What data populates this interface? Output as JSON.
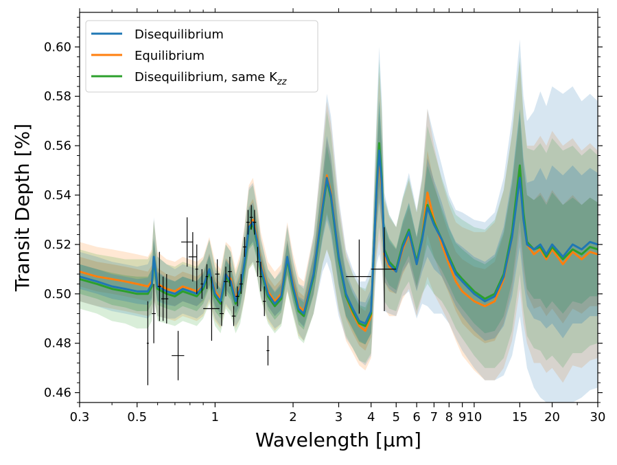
{
  "chart_data": {
    "type": "line",
    "title": "",
    "xlabel": "Wavelength [µm]",
    "ylabel": "Transit Depth [%]",
    "xscale": "log",
    "xlim": [
      0.3,
      30
    ],
    "ylim": [
      0.456,
      0.614
    ],
    "xticks": [
      0.3,
      0.5,
      1,
      2,
      3,
      4,
      5,
      6,
      7,
      8,
      9,
      10,
      15,
      20,
      30
    ],
    "xtick_labels": [
      "0.3",
      "0.5",
      "1",
      "2",
      "3",
      "4",
      "5",
      "6",
      "7",
      "8",
      "9",
      "10",
      "15",
      "20",
      "30"
    ],
    "yticks": [
      0.46,
      0.48,
      0.5,
      0.52,
      0.54,
      0.56,
      0.58,
      0.6
    ],
    "ytick_labels": [
      "0.46",
      "0.48",
      "0.50",
      "0.52",
      "0.54",
      "0.56",
      "0.58",
      "0.60"
    ],
    "legend": {
      "position": "upper-left",
      "entries": [
        "Disequilibrium",
        "Equilibrium",
        "Disequilibrium, same K"
      ],
      "subscript": "zz"
    },
    "series": [
      {
        "name": "Disequilibrium",
        "color": "#1f77b4",
        "x": [
          0.3,
          0.35,
          0.4,
          0.45,
          0.5,
          0.55,
          0.57,
          0.58,
          0.6,
          0.65,
          0.7,
          0.75,
          0.8,
          0.85,
          0.9,
          0.95,
          1.0,
          1.05,
          1.1,
          1.15,
          1.2,
          1.25,
          1.3,
          1.35,
          1.4,
          1.45,
          1.5,
          1.6,
          1.7,
          1.8,
          1.9,
          2.0,
          2.1,
          2.2,
          2.4,
          2.6,
          2.7,
          2.8,
          3.0,
          3.2,
          3.4,
          3.6,
          3.8,
          4.0,
          4.2,
          4.3,
          4.4,
          4.5,
          4.7,
          5.0,
          5.3,
          5.6,
          6.0,
          6.3,
          6.6,
          7.0,
          7.5,
          8.0,
          8.5,
          9.0,
          10.0,
          11.0,
          12.0,
          13.0,
          14.0,
          15.0,
          15.5,
          16.0,
          17.0,
          18.0,
          19.0,
          20.0,
          22.0,
          24.0,
          26.0,
          28.0,
          30.0
        ],
        "y": [
          0.507,
          0.505,
          0.503,
          0.502,
          0.501,
          0.501,
          0.504,
          0.515,
          0.503,
          0.501,
          0.5,
          0.502,
          0.501,
          0.5,
          0.503,
          0.51,
          0.5,
          0.497,
          0.508,
          0.505,
          0.497,
          0.502,
          0.513,
          0.527,
          0.529,
          0.522,
          0.511,
          0.5,
          0.496,
          0.499,
          0.515,
          0.503,
          0.494,
          0.492,
          0.508,
          0.535,
          0.547,
          0.54,
          0.515,
          0.5,
          0.494,
          0.489,
          0.488,
          0.493,
          0.542,
          0.558,
          0.545,
          0.517,
          0.512,
          0.509,
          0.519,
          0.525,
          0.512,
          0.522,
          0.535,
          0.528,
          0.522,
          0.514,
          0.508,
          0.505,
          0.5,
          0.497,
          0.499,
          0.507,
          0.523,
          0.547,
          0.53,
          0.52,
          0.518,
          0.52,
          0.516,
          0.52,
          0.515,
          0.52,
          0.518,
          0.521,
          0.52
        ],
        "band_width": [
          0.01,
          0.01,
          0.01,
          0.01,
          0.01,
          0.011,
          0.012,
          0.016,
          0.012,
          0.011,
          0.01,
          0.01,
          0.01,
          0.01,
          0.011,
          0.012,
          0.01,
          0.01,
          0.012,
          0.012,
          0.01,
          0.012,
          0.014,
          0.016,
          0.016,
          0.014,
          0.012,
          0.01,
          0.01,
          0.011,
          0.013,
          0.011,
          0.01,
          0.011,
          0.016,
          0.026,
          0.034,
          0.032,
          0.024,
          0.018,
          0.016,
          0.016,
          0.017,
          0.018,
          0.03,
          0.042,
          0.034,
          0.024,
          0.02,
          0.018,
          0.02,
          0.024,
          0.022,
          0.026,
          0.04,
          0.036,
          0.03,
          0.026,
          0.026,
          0.028,
          0.03,
          0.032,
          0.034,
          0.04,
          0.048,
          0.056,
          0.05,
          0.05,
          0.056,
          0.062,
          0.06,
          0.064,
          0.066,
          0.064,
          0.06,
          0.06,
          0.058
        ]
      },
      {
        "name": "Equilibrium",
        "color": "#ff7f0e",
        "x": [
          0.3,
          0.35,
          0.4,
          0.45,
          0.5,
          0.55,
          0.57,
          0.58,
          0.6,
          0.65,
          0.7,
          0.75,
          0.8,
          0.85,
          0.9,
          0.95,
          1.0,
          1.05,
          1.1,
          1.15,
          1.2,
          1.25,
          1.3,
          1.35,
          1.4,
          1.45,
          1.5,
          1.6,
          1.7,
          1.8,
          1.9,
          2.0,
          2.1,
          2.2,
          2.4,
          2.6,
          2.7,
          2.8,
          3.0,
          3.2,
          3.4,
          3.6,
          3.8,
          4.0,
          4.2,
          4.3,
          4.4,
          4.5,
          4.7,
          5.0,
          5.3,
          5.6,
          6.0,
          6.3,
          6.6,
          7.0,
          7.5,
          8.0,
          8.5,
          9.0,
          10.0,
          11.0,
          12.0,
          13.0,
          14.0,
          15.0,
          15.5,
          16.0,
          17.0,
          18.0,
          19.0,
          20.0,
          22.0,
          24.0,
          26.0,
          28.0,
          30.0
        ],
        "y": [
          0.509,
          0.507,
          0.506,
          0.505,
          0.504,
          0.503,
          0.505,
          0.514,
          0.504,
          0.502,
          0.501,
          0.503,
          0.502,
          0.501,
          0.503,
          0.51,
          0.501,
          0.498,
          0.508,
          0.506,
          0.498,
          0.503,
          0.513,
          0.527,
          0.53,
          0.523,
          0.512,
          0.501,
          0.497,
          0.5,
          0.515,
          0.504,
          0.495,
          0.493,
          0.508,
          0.536,
          0.548,
          0.541,
          0.515,
          0.499,
          0.492,
          0.487,
          0.485,
          0.491,
          0.541,
          0.556,
          0.543,
          0.516,
          0.511,
          0.509,
          0.518,
          0.524,
          0.512,
          0.523,
          0.541,
          0.53,
          0.52,
          0.512,
          0.505,
          0.501,
          0.497,
          0.495,
          0.497,
          0.506,
          0.523,
          0.548,
          0.53,
          0.52,
          0.516,
          0.518,
          0.514,
          0.518,
          0.512,
          0.517,
          0.514,
          0.517,
          0.516
        ],
        "band_width": [
          0.012,
          0.012,
          0.012,
          0.012,
          0.012,
          0.012,
          0.013,
          0.016,
          0.013,
          0.012,
          0.012,
          0.012,
          0.012,
          0.012,
          0.012,
          0.013,
          0.012,
          0.012,
          0.013,
          0.013,
          0.012,
          0.013,
          0.015,
          0.017,
          0.017,
          0.015,
          0.013,
          0.012,
          0.012,
          0.012,
          0.014,
          0.012,
          0.012,
          0.012,
          0.016,
          0.024,
          0.03,
          0.028,
          0.022,
          0.018,
          0.016,
          0.016,
          0.016,
          0.017,
          0.026,
          0.034,
          0.03,
          0.022,
          0.02,
          0.018,
          0.02,
          0.022,
          0.021,
          0.024,
          0.034,
          0.03,
          0.026,
          0.024,
          0.024,
          0.026,
          0.028,
          0.03,
          0.032,
          0.036,
          0.042,
          0.046,
          0.042,
          0.04,
          0.044,
          0.046,
          0.046,
          0.048,
          0.048,
          0.046,
          0.044,
          0.044,
          0.042
        ]
      },
      {
        "name": "Disequilibrium, same Kzz",
        "color": "#2ca02c",
        "x": [
          0.3,
          0.35,
          0.4,
          0.45,
          0.5,
          0.55,
          0.57,
          0.58,
          0.6,
          0.65,
          0.7,
          0.75,
          0.8,
          0.85,
          0.9,
          0.95,
          1.0,
          1.05,
          1.1,
          1.15,
          1.2,
          1.25,
          1.3,
          1.35,
          1.4,
          1.45,
          1.5,
          1.6,
          1.7,
          1.8,
          1.9,
          2.0,
          2.1,
          2.2,
          2.4,
          2.6,
          2.7,
          2.8,
          3.0,
          3.2,
          3.4,
          3.6,
          3.8,
          4.0,
          4.2,
          4.3,
          4.4,
          4.5,
          4.7,
          5.0,
          5.3,
          5.6,
          6.0,
          6.3,
          6.6,
          7.0,
          7.5,
          8.0,
          8.5,
          9.0,
          10.0,
          11.0,
          12.0,
          13.0,
          14.0,
          15.0,
          15.5,
          16.0,
          17.0,
          18.0,
          19.0,
          20.0,
          22.0,
          24.0,
          26.0,
          28.0,
          30.0
        ],
        "y": [
          0.506,
          0.504,
          0.502,
          0.501,
          0.5,
          0.5,
          0.503,
          0.514,
          0.502,
          0.5,
          0.499,
          0.501,
          0.5,
          0.499,
          0.502,
          0.509,
          0.499,
          0.496,
          0.507,
          0.504,
          0.496,
          0.501,
          0.512,
          0.526,
          0.528,
          0.521,
          0.51,
          0.499,
          0.495,
          0.498,
          0.514,
          0.502,
          0.493,
          0.491,
          0.507,
          0.534,
          0.546,
          0.539,
          0.514,
          0.499,
          0.493,
          0.488,
          0.487,
          0.492,
          0.543,
          0.561,
          0.547,
          0.518,
          0.513,
          0.51,
          0.52,
          0.526,
          0.513,
          0.523,
          0.536,
          0.529,
          0.522,
          0.515,
          0.509,
          0.506,
          0.501,
          0.498,
          0.5,
          0.508,
          0.525,
          0.552,
          0.533,
          0.521,
          0.518,
          0.519,
          0.515,
          0.519,
          0.514,
          0.518,
          0.516,
          0.519,
          0.518
        ],
        "band_width": [
          0.012,
          0.012,
          0.013,
          0.013,
          0.014,
          0.014,
          0.014,
          0.016,
          0.013,
          0.012,
          0.012,
          0.012,
          0.012,
          0.012,
          0.012,
          0.013,
          0.012,
          0.012,
          0.013,
          0.013,
          0.012,
          0.013,
          0.014,
          0.016,
          0.016,
          0.014,
          0.012,
          0.011,
          0.011,
          0.011,
          0.013,
          0.011,
          0.011,
          0.011,
          0.015,
          0.022,
          0.028,
          0.026,
          0.02,
          0.016,
          0.015,
          0.015,
          0.015,
          0.016,
          0.026,
          0.034,
          0.028,
          0.021,
          0.019,
          0.017,
          0.019,
          0.021,
          0.02,
          0.023,
          0.032,
          0.029,
          0.025,
          0.023,
          0.023,
          0.024,
          0.026,
          0.028,
          0.03,
          0.034,
          0.04,
          0.044,
          0.04,
          0.038,
          0.04,
          0.042,
          0.042,
          0.044,
          0.044,
          0.042,
          0.04,
          0.04,
          0.038
        ]
      }
    ],
    "observations": {
      "color": "#000000",
      "points": [
        {
          "x": 0.55,
          "y": 0.48,
          "xerr": 0.005,
          "yerr": 0.017
        },
        {
          "x": 0.58,
          "y": 0.492,
          "xerr": 0.01,
          "yerr": 0.012
        },
        {
          "x": 0.61,
          "y": 0.503,
          "xerr": 0.01,
          "yerr": 0.014
        },
        {
          "x": 0.63,
          "y": 0.498,
          "xerr": 0.01,
          "yerr": 0.009
        },
        {
          "x": 0.65,
          "y": 0.498,
          "xerr": 0.01,
          "yerr": 0.01
        },
        {
          "x": 0.72,
          "y": 0.475,
          "xerr": 0.04,
          "yerr": 0.01
        },
        {
          "x": 0.78,
          "y": 0.521,
          "xerr": 0.04,
          "yerr": 0.01
        },
        {
          "x": 0.82,
          "y": 0.515,
          "xerr": 0.03,
          "yerr": 0.01
        },
        {
          "x": 0.85,
          "y": 0.51,
          "xerr": 0.01,
          "yerr": 0.01
        },
        {
          "x": 0.89,
          "y": 0.504,
          "xerr": 0.01,
          "yerr": 0.006
        },
        {
          "x": 0.93,
          "y": 0.507,
          "xerr": 0.01,
          "yerr": 0.005
        },
        {
          "x": 0.97,
          "y": 0.494,
          "xerr": 0.07,
          "yerr": 0.013
        },
        {
          "x": 1.02,
          "y": 0.508,
          "xerr": 0.02,
          "yerr": 0.006
        },
        {
          "x": 1.06,
          "y": 0.492,
          "xerr": 0.02,
          "yerr": 0.005
        },
        {
          "x": 1.1,
          "y": 0.505,
          "xerr": 0.02,
          "yerr": 0.006
        },
        {
          "x": 1.14,
          "y": 0.509,
          "xerr": 0.02,
          "yerr": 0.006
        },
        {
          "x": 1.18,
          "y": 0.491,
          "xerr": 0.02,
          "yerr": 0.004
        },
        {
          "x": 1.22,
          "y": 0.499,
          "xerr": 0.02,
          "yerr": 0.004
        },
        {
          "x": 1.26,
          "y": 0.504,
          "xerr": 0.02,
          "yerr": 0.004
        },
        {
          "x": 1.3,
          "y": 0.519,
          "xerr": 0.02,
          "yerr": 0.004
        },
        {
          "x": 1.34,
          "y": 0.529,
          "xerr": 0.02,
          "yerr": 0.005
        },
        {
          "x": 1.38,
          "y": 0.531,
          "xerr": 0.02,
          "yerr": 0.005
        },
        {
          "x": 1.42,
          "y": 0.529,
          "xerr": 0.02,
          "yerr": 0.005
        },
        {
          "x": 1.46,
          "y": 0.513,
          "xerr": 0.02,
          "yerr": 0.006
        },
        {
          "x": 1.5,
          "y": 0.507,
          "xerr": 0.02,
          "yerr": 0.006
        },
        {
          "x": 1.55,
          "y": 0.497,
          "xerr": 0.02,
          "yerr": 0.006
        },
        {
          "x": 1.6,
          "y": 0.477,
          "xerr": 0.02,
          "yerr": 0.006
        },
        {
          "x": 3.6,
          "y": 0.507,
          "xerr": 0.4,
          "yerr": 0.015
        },
        {
          "x": 4.5,
          "y": 0.51,
          "xerr": 0.5,
          "yerr": 0.017
        }
      ]
    }
  }
}
